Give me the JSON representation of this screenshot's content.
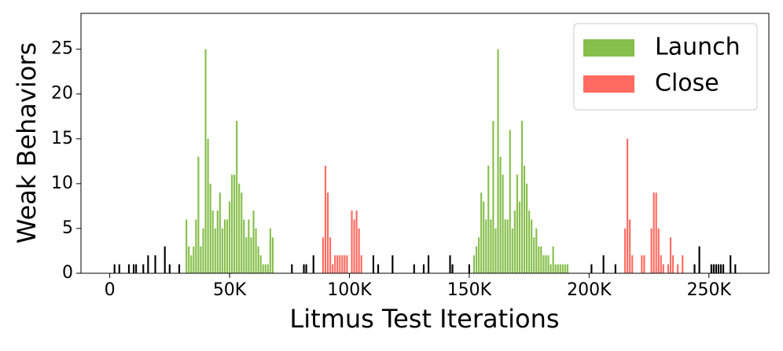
{
  "chart_data": {
    "type": "bar",
    "xlabel": "Litmus Test Iterations",
    "ylabel": "Weak Behaviors",
    "xlim": [
      -12000,
      275000
    ],
    "ylim": [
      0,
      29
    ],
    "xticks": [
      0,
      {
        "value": 50000,
        "label": "50K"
      },
      {
        "value": 100000,
        "label": "100K"
      },
      {
        "value": 150000,
        "label": "150K"
      },
      {
        "value": 200000,
        "label": "200K"
      },
      {
        "value": 250000,
        "label": "250K"
      }
    ],
    "yticks": [
      0,
      5,
      10,
      15,
      20,
      25
    ],
    "legend": "upper right",
    "series": [
      {
        "color": "#000000",
        "x": [
          2000,
          4000,
          8000,
          10000,
          11000,
          14000,
          16000,
          19000,
          23000,
          25000,
          29000,
          76000,
          81000,
          82000,
          85000,
          110000,
          112000,
          118000,
          127000,
          131000,
          133000,
          142000,
          143000,
          150000,
          201000,
          206000,
          211000,
          244000,
          246000,
          251000,
          252000,
          253000,
          254000,
          255000,
          256000,
          259000,
          261000
        ],
        "values": [
          1,
          1,
          1,
          1,
          1,
          1,
          2,
          2,
          3,
          1,
          1,
          1,
          1,
          1,
          2,
          2,
          1,
          2,
          1,
          1,
          2,
          2,
          1,
          1,
          1,
          2,
          1,
          1,
          3,
          1,
          1,
          1,
          1,
          1,
          1,
          2,
          1
        ]
      },
      {
        "name": "Launch",
        "color": "#86bf4b",
        "x": [
          32000,
          33000,
          34000,
          35000,
          36000,
          37000,
          38000,
          39000,
          40000,
          41000,
          42000,
          43000,
          44000,
          45000,
          46000,
          47000,
          48000,
          49000,
          50000,
          51000,
          52000,
          53000,
          54000,
          55000,
          56000,
          57000,
          58000,
          59000,
          60000,
          61000,
          62000,
          63000,
          64000,
          65000,
          66000,
          67000,
          68000,
          152000,
          153000,
          154000,
          155000,
          156000,
          157000,
          158000,
          159000,
          160000,
          161000,
          162000,
          163000,
          164000,
          165000,
          166000,
          167000,
          168000,
          169000,
          170000,
          171000,
          172000,
          173000,
          174000,
          175000,
          176000,
          177000,
          178000,
          179000,
          180000,
          181000,
          182000,
          183000,
          184000,
          185000,
          186000,
          187000,
          188000,
          189000,
          190000,
          191000
        ],
        "values": [
          6,
          3,
          2,
          3,
          6,
          13,
          3,
          5,
          25,
          15,
          10,
          7,
          5,
          7,
          9,
          5,
          6,
          6,
          8,
          11,
          11,
          17,
          10,
          9,
          6,
          4,
          6,
          4,
          7,
          5,
          3,
          2,
          1,
          1,
          1,
          5,
          4,
          2,
          3,
          4,
          9,
          8,
          6,
          12,
          6,
          17,
          5,
          25,
          13,
          11,
          6,
          6,
          16,
          5,
          7,
          11,
          8,
          17,
          12,
          10,
          7,
          6,
          4,
          5,
          3,
          3,
          2,
          2,
          2,
          1,
          3,
          1,
          1,
          1,
          1,
          1,
          1
        ]
      },
      {
        "name": "Close",
        "color": "#ff6b61",
        "x": [
          89000,
          90000,
          91000,
          92000,
          93000,
          94000,
          95000,
          96000,
          97000,
          98000,
          99000,
          101000,
          102000,
          103000,
          104000,
          105000,
          215000,
          216000,
          217000,
          218000,
          222000,
          223000,
          226000,
          227000,
          228000,
          229000,
          230000,
          231000,
          233000,
          234000,
          235000,
          237000,
          239000
        ],
        "values": [
          4,
          12,
          9,
          4,
          1,
          2,
          2,
          2,
          2,
          2,
          2,
          7,
          6,
          7,
          5,
          2,
          5,
          15,
          6,
          2,
          2,
          2,
          5,
          9,
          9,
          5,
          2,
          1,
          1,
          4,
          2,
          1,
          2
        ]
      }
    ]
  }
}
